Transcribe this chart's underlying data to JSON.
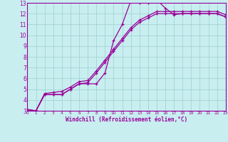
{
  "xlabel": "Windchill (Refroidissement éolien,°C)",
  "bg_color": "#c8eef0",
  "grid_color": "#9ecfcf",
  "line_color": "#990099",
  "xlim": [
    0,
    23
  ],
  "ylim": [
    3,
    13
  ],
  "xticks": [
    0,
    1,
    2,
    3,
    4,
    5,
    6,
    7,
    8,
    9,
    10,
    11,
    12,
    13,
    14,
    15,
    16,
    17,
    18,
    19,
    20,
    21,
    22,
    23
  ],
  "yticks": [
    3,
    4,
    5,
    6,
    7,
    8,
    9,
    10,
    11,
    12,
    13
  ],
  "line1_x": [
    0,
    1,
    2,
    3,
    4,
    5,
    6,
    7,
    8,
    9,
    10,
    11,
    12,
    13,
    14,
    15,
    16,
    17,
    18,
    19,
    20,
    21,
    22,
    23
  ],
  "line1_y": [
    3.1,
    3.0,
    4.5,
    4.5,
    4.5,
    5.0,
    5.5,
    5.6,
    6.5,
    7.5,
    8.5,
    9.5,
    10.5,
    11.2,
    11.6,
    12.0,
    12.0,
    12.0,
    12.0,
    12.0,
    12.0,
    12.0,
    12.0,
    11.7
  ],
  "line2_x": [
    0,
    1,
    2,
    3,
    4,
    5,
    6,
    7,
    8,
    9,
    10,
    11,
    12,
    13,
    14,
    15,
    16,
    17,
    18,
    19,
    20,
    21,
    22,
    23
  ],
  "line2_y": [
    3.1,
    3.0,
    4.6,
    4.7,
    4.8,
    5.2,
    5.7,
    5.8,
    6.7,
    7.7,
    8.7,
    9.7,
    10.7,
    11.4,
    11.8,
    12.2,
    12.2,
    12.2,
    12.2,
    12.2,
    12.2,
    12.2,
    12.2,
    11.9
  ],
  "line3_x": [
    0,
    1,
    2,
    3,
    4,
    5,
    6,
    7,
    8,
    9,
    10,
    11,
    12,
    13,
    14,
    15,
    16,
    17,
    18,
    19,
    20,
    21,
    22,
    23
  ],
  "line3_y": [
    3.1,
    3.0,
    4.5,
    4.5,
    4.5,
    5.0,
    5.5,
    5.5,
    5.5,
    6.5,
    9.5,
    11.0,
    13.2,
    13.0,
    13.0,
    13.3,
    12.5,
    11.9,
    12.0,
    12.0,
    12.0,
    12.0,
    12.0,
    11.7
  ]
}
